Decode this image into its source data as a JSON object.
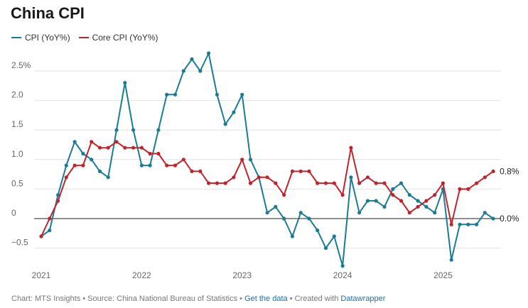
{
  "title": "China CPI",
  "legend": [
    {
      "label": "CPI (YoY%)",
      "color": "#1a7b94"
    },
    {
      "label": "Core CPI (YoY%)",
      "color": "#c0242b"
    }
  ],
  "chart_data": {
    "type": "line",
    "title": "China CPI",
    "xlabel": "",
    "ylabel": "",
    "ylim": [
      -0.8,
      2.8
    ],
    "yticks": [
      2.5,
      2.0,
      1.5,
      1.0,
      0.5,
      0,
      -0.5
    ],
    "ytick_labels": [
      "2.5%",
      "2.0",
      "1.5",
      "1.0",
      "0.5",
      "0",
      "−0.5"
    ],
    "x_tick_labels": [
      "2021",
      "2022",
      "2023",
      "2024",
      "2025"
    ],
    "x_start": "2021-01",
    "grid": true,
    "series": [
      {
        "name": "CPI (YoY%)",
        "color": "#1a7b94",
        "values": [
          -0.3,
          -0.2,
          0.4,
          0.9,
          1.3,
          1.1,
          1.0,
          0.8,
          0.7,
          1.5,
          2.3,
          1.5,
          0.9,
          0.9,
          1.5,
          2.1,
          2.1,
          2.5,
          2.7,
          2.5,
          2.8,
          2.1,
          1.6,
          1.8,
          2.1,
          1.0,
          0.7,
          0.1,
          0.2,
          0.0,
          -0.3,
          0.1,
          0.0,
          -0.2,
          -0.5,
          -0.3,
          -0.8,
          0.7,
          0.1,
          0.3,
          0.3,
          0.2,
          0.5,
          0.6,
          0.4,
          0.3,
          0.2,
          0.1,
          0.5,
          -0.7,
          -0.1,
          -0.1,
          -0.1,
          0.1,
          0.0
        ],
        "end_label": "0.0%"
      },
      {
        "name": "Core CPI (YoY%)",
        "color": "#c0242b",
        "values": [
          -0.3,
          0.0,
          0.3,
          0.7,
          0.9,
          0.9,
          1.3,
          1.2,
          1.2,
          1.3,
          1.2,
          1.2,
          1.2,
          1.1,
          1.1,
          0.9,
          0.9,
          1.0,
          0.8,
          0.8,
          0.6,
          0.6,
          0.6,
          0.7,
          1.0,
          0.6,
          0.7,
          0.7,
          0.6,
          0.4,
          0.8,
          0.8,
          0.8,
          0.6,
          0.6,
          0.6,
          0.4,
          1.2,
          0.6,
          0.7,
          0.6,
          0.6,
          0.4,
          0.3,
          0.1,
          0.2,
          0.3,
          0.4,
          0.6,
          -0.1,
          0.5,
          0.5,
          0.6,
          0.7,
          0.8
        ],
        "end_label": "0.8%"
      }
    ]
  },
  "footer": {
    "prefix": "Chart: MTS Insights • Source: China National Bureau of Statistics •",
    "link1": "Get the data",
    "middle": "• Created with",
    "link2": "Datawrapper"
  }
}
